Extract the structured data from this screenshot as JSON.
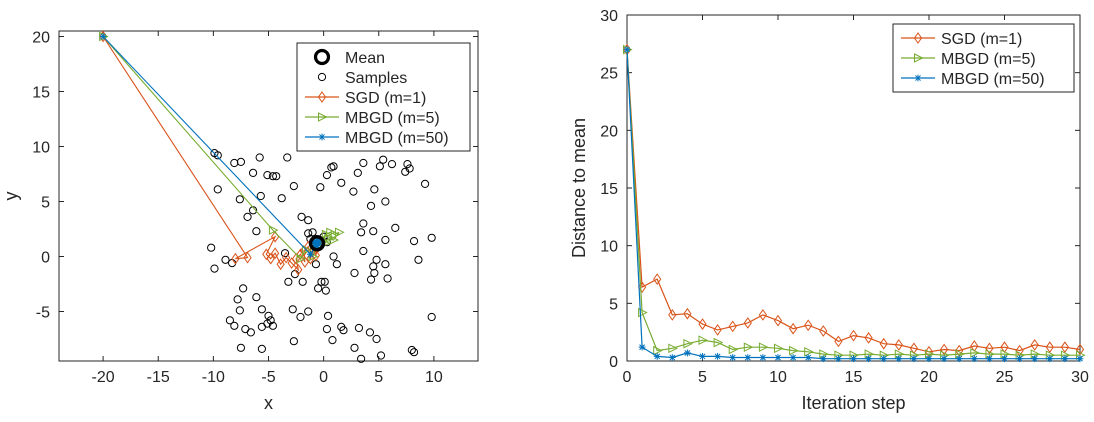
{
  "chart_data": [
    {
      "type": "scatter",
      "title": "",
      "xlabel": "x",
      "ylabel": "y",
      "xlim": [
        -24,
        14
      ],
      "ylim": [
        -9.5,
        20.5
      ],
      "xticks": [
        -20,
        -15,
        -10,
        -5,
        0,
        5,
        10
      ],
      "yticks": [
        -5,
        0,
        5,
        10,
        15,
        20
      ],
      "grid": false,
      "legend_position": "top-right",
      "mean": {
        "name": "Mean",
        "x": -0.6,
        "y": 1.2,
        "color": "#000000"
      },
      "samples": {
        "name": "Samples",
        "color": "#000000",
        "points": [
          [
            -9.6,
            9.2
          ],
          [
            -9.9,
            9.4
          ],
          [
            -8.1,
            8.5
          ],
          [
            -7.5,
            8.6
          ],
          [
            -5.8,
            9.0
          ],
          [
            -6.4,
            7.6
          ],
          [
            -5.1,
            7.4
          ],
          [
            -4.6,
            7.3
          ],
          [
            -4.3,
            7.3
          ],
          [
            -5.7,
            5.5
          ],
          [
            -7.6,
            5.2
          ],
          [
            -9.6,
            6.1
          ],
          [
            -6.9,
            3.6
          ],
          [
            -6.1,
            2.3
          ],
          [
            -6.4,
            4.2
          ],
          [
            -3.8,
            5.3
          ],
          [
            -2.7,
            6.4
          ],
          [
            -3.3,
            9.0
          ],
          [
            -2.0,
            3.6
          ],
          [
            -1.4,
            3.3
          ],
          [
            -1.4,
            2.1
          ],
          [
            -1.0,
            2.2
          ],
          [
            -0.3,
            6.3
          ],
          [
            0.3,
            7.4
          ],
          [
            0.7,
            8.1
          ],
          [
            0.9,
            8.2
          ],
          [
            1.6,
            6.7
          ],
          [
            2.7,
            5.9
          ],
          [
            3.1,
            7.6
          ],
          [
            3.6,
            8.5
          ],
          [
            5.1,
            8.2
          ],
          [
            5.4,
            8.8
          ],
          [
            6.2,
            8.4
          ],
          [
            7.6,
            8.4
          ],
          [
            7.8,
            8.0
          ],
          [
            7.4,
            7.7
          ],
          [
            9.2,
            6.6
          ],
          [
            4.6,
            6.1
          ],
          [
            4.3,
            4.6
          ],
          [
            5.6,
            5.0
          ],
          [
            3.6,
            3.0
          ],
          [
            3.4,
            2.2
          ],
          [
            4.5,
            2.3
          ],
          [
            6.5,
            2.6
          ],
          [
            5.6,
            1.5
          ],
          [
            0.3,
            1.3
          ],
          [
            0.0,
            1.8
          ],
          [
            -1.2,
            1.6
          ],
          [
            -0.7,
            -0.7
          ],
          [
            1.2,
            -0.7
          ],
          [
            0.9,
            0.0
          ],
          [
            -2.6,
            -1.6
          ],
          [
            -1.9,
            -2.3
          ],
          [
            -3.2,
            -2.3
          ],
          [
            -0.2,
            -2.3
          ],
          [
            0.1,
            -2.3
          ],
          [
            0.2,
            -3.1
          ],
          [
            2.8,
            -1.5
          ],
          [
            3.6,
            0.5
          ],
          [
            4.8,
            -0.3
          ],
          [
            4.5,
            -0.9
          ],
          [
            5.6,
            -0.7
          ],
          [
            4.6,
            -1.5
          ],
          [
            4.3,
            -2.1
          ],
          [
            5.8,
            -2.0
          ],
          [
            8.6,
            -0.3
          ],
          [
            8.2,
            1.4
          ],
          [
            9.8,
            1.7
          ],
          [
            9.8,
            -5.5
          ],
          [
            -10.2,
            0.8
          ],
          [
            -9.9,
            -1.1
          ],
          [
            -8.9,
            -0.3
          ],
          [
            -8.3,
            -0.6
          ],
          [
            -7.3,
            -2.9
          ],
          [
            -7.8,
            -3.9
          ],
          [
            -7.6,
            -4.9
          ],
          [
            -8.5,
            -5.8
          ],
          [
            -8.1,
            -6.3
          ],
          [
            -6.1,
            -3.7
          ],
          [
            -5.6,
            -4.8
          ],
          [
            -5.0,
            -5.4
          ],
          [
            -4.8,
            -5.8
          ],
          [
            -5.1,
            -6.1
          ],
          [
            -5.6,
            -6.4
          ],
          [
            -6.6,
            -6.9
          ],
          [
            -7.1,
            -6.6
          ],
          [
            -5.6,
            -8.4
          ],
          [
            -7.5,
            -8.3
          ],
          [
            -4.6,
            -6.3
          ],
          [
            -2.8,
            -4.8
          ],
          [
            -2.1,
            -5.5
          ],
          [
            -1.4,
            -5.0
          ],
          [
            -0.5,
            -2.9
          ],
          [
            0.4,
            -5.4
          ],
          [
            0.3,
            -6.6
          ],
          [
            0.8,
            -7.6
          ],
          [
            1.6,
            -6.4
          ],
          [
            1.8,
            -6.7
          ],
          [
            3.2,
            -6.5
          ],
          [
            4.2,
            -6.9
          ],
          [
            4.8,
            -7.5
          ],
          [
            2.8,
            -8.3
          ],
          [
            3.4,
            -9.3
          ],
          [
            5.2,
            -9.0
          ],
          [
            8.2,
            -8.7
          ],
          [
            8.0,
            -8.5
          ],
          [
            -2.7,
            -7.7
          ],
          [
            -3.5,
            0.3
          ]
        ]
      },
      "series": [
        {
          "name": "SGD (m=1)",
          "color": "#D95319",
          "marker": "diamond",
          "points": [
            [
              -20.0,
              20.0
            ],
            [
              -6.9,
              -0.1
            ],
            [
              -8.0,
              -0.2
            ],
            [
              -4.4,
              1.8
            ],
            [
              -5.2,
              0.2
            ],
            [
              -4.8,
              -0.2
            ],
            [
              -4.4,
              0.3
            ],
            [
              -3.9,
              -0.7
            ],
            [
              -3.4,
              -0.1
            ],
            [
              -2.9,
              -0.6
            ],
            [
              -2.3,
              -1.2
            ],
            [
              -2.5,
              -0.2
            ],
            [
              -2.1,
              0.2
            ],
            [
              -1.7,
              -0.5
            ],
            [
              -1.8,
              0.5
            ],
            [
              -1.4,
              0.9
            ],
            [
              -1.2,
              -0.2
            ],
            [
              -0.9,
              0.6
            ],
            [
              -0.7,
              0.1
            ],
            [
              -0.5,
              0.9
            ],
            [
              -0.3,
              1.4
            ]
          ]
        },
        {
          "name": "MBGD (m=5)",
          "color": "#77AC30",
          "marker": "triangle-right",
          "points": [
            [
              -20.0,
              20.0
            ],
            [
              -4.6,
              2.4
            ],
            [
              -2.1,
              -0.2
            ],
            [
              -1.6,
              0.6
            ],
            [
              -1.0,
              0.0
            ],
            [
              -0.6,
              0.9
            ],
            [
              -0.3,
              1.4
            ],
            [
              0.2,
              2.0
            ],
            [
              0.6,
              2.2
            ],
            [
              1.0,
              2.0
            ],
            [
              1.4,
              2.2
            ],
            [
              0.9,
              1.5
            ],
            [
              0.4,
              1.6
            ],
            [
              0.1,
              1.2
            ],
            [
              -0.2,
              1.5
            ]
          ]
        },
        {
          "name": "MBGD (m=50)",
          "color": "#0072BD",
          "marker": "star",
          "points": [
            [
              -20.0,
              20.0
            ],
            [
              -1.2,
              0.2
            ],
            [
              -0.8,
              0.8
            ],
            [
              -0.9,
              1.3
            ],
            [
              -0.5,
              1.1
            ],
            [
              -0.7,
              1.4
            ],
            [
              -0.4,
              1.3
            ],
            [
              -0.6,
              1.0
            ],
            [
              -0.5,
              1.5
            ],
            [
              -0.8,
              1.2
            ]
          ]
        }
      ]
    },
    {
      "type": "line",
      "title": "",
      "xlabel": "Iteration step",
      "ylabel": "Distance to mean",
      "xlim": [
        0,
        30
      ],
      "ylim": [
        0,
        30
      ],
      "xticks": [
        0,
        5,
        10,
        15,
        20,
        25,
        30
      ],
      "yticks": [
        0,
        5,
        10,
        15,
        20,
        25,
        30
      ],
      "grid": false,
      "legend_position": "top-right",
      "x": [
        0,
        1,
        2,
        3,
        4,
        5,
        6,
        7,
        8,
        9,
        10,
        11,
        12,
        13,
        14,
        15,
        16,
        17,
        18,
        19,
        20,
        21,
        22,
        23,
        24,
        25,
        26,
        27,
        28,
        29,
        30
      ],
      "series": [
        {
          "name": "SGD (m=1)",
          "color": "#D95319",
          "marker": "diamond",
          "values": [
            27.0,
            6.4,
            7.1,
            4.0,
            4.1,
            3.2,
            2.7,
            3.0,
            3.3,
            4.0,
            3.5,
            2.8,
            3.1,
            2.6,
            1.7,
            2.2,
            2.0,
            1.5,
            1.4,
            1.1,
            0.8,
            1.0,
            0.9,
            1.3,
            1.1,
            1.2,
            0.9,
            1.4,
            1.2,
            1.2,
            1.0
          ]
        },
        {
          "name": "MBGD (m=5)",
          "color": "#77AC30",
          "marker": "triangle-right",
          "values": [
            27.0,
            4.2,
            0.9,
            1.1,
            1.5,
            1.8,
            1.6,
            1.0,
            1.2,
            1.2,
            1.1,
            0.9,
            0.8,
            0.6,
            0.5,
            0.5,
            0.6,
            0.5,
            0.6,
            0.5,
            0.6,
            0.5,
            0.6,
            0.7,
            0.6,
            0.6,
            0.5,
            0.6,
            0.5,
            0.5,
            0.5
          ]
        },
        {
          "name": "MBGD (m=50)",
          "color": "#0072BD",
          "marker": "star",
          "values": [
            27.0,
            1.2,
            0.4,
            0.3,
            0.7,
            0.4,
            0.4,
            0.3,
            0.3,
            0.3,
            0.3,
            0.3,
            0.3,
            0.2,
            0.2,
            0.2,
            0.2,
            0.2,
            0.2,
            0.2,
            0.2,
            0.2,
            0.2,
            0.2,
            0.2,
            0.2,
            0.2,
            0.2,
            0.2,
            0.2,
            0.2
          ]
        }
      ]
    }
  ]
}
